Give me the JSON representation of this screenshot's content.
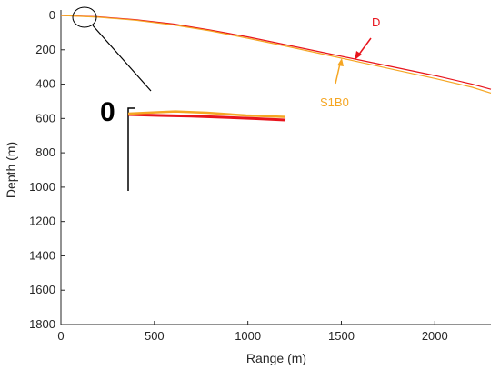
{
  "chart_data": {
    "type": "line",
    "xlabel": "Range (m)",
    "ylabel": "Depth (m)",
    "xlim": [
      0,
      2300
    ],
    "ylim": [
      0,
      1800
    ],
    "y_reversed": true,
    "x_ticks": [
      0,
      500,
      1000,
      1500,
      2000
    ],
    "y_ticks": [
      0,
      200,
      400,
      600,
      800,
      1000,
      1200,
      1400,
      1600,
      1800
    ],
    "grid": false,
    "series": [
      {
        "name": "D",
        "color": "#e8141c",
        "x": [
          0,
          200,
          400,
          600,
          800,
          1000,
          1200,
          1400,
          1600,
          1800,
          2000,
          2200,
          2300
        ],
        "y": [
          0,
          8,
          25,
          50,
          85,
          125,
          170,
          215,
          260,
          305,
          350,
          400,
          430
        ]
      },
      {
        "name": "S1B0",
        "color": "#f5a623",
        "x": [
          0,
          200,
          400,
          600,
          800,
          1000,
          1200,
          1400,
          1600,
          1800,
          2000,
          2200,
          2300
        ],
        "y": [
          0,
          10,
          28,
          55,
          90,
          133,
          178,
          225,
          272,
          320,
          367,
          418,
          452
        ]
      }
    ],
    "annotations": [
      {
        "text": "D",
        "color": "#e8141c",
        "x": 1690,
        "y": 30
      },
      {
        "text": "S1B0",
        "color": "#f5a623",
        "x": 1480,
        "y": 495
      }
    ],
    "inset": {
      "label": "0",
      "series": [
        {
          "name": "D",
          "color": "#e8141c",
          "x": [
            0,
            0.2,
            0.4,
            0.6,
            0.8,
            1.0
          ],
          "y": [
            0.05,
            0.1,
            0.14,
            0.2,
            0.27,
            0.35
          ]
        },
        {
          "name": "S1B0",
          "color": "#f5a623",
          "x": [
            0,
            0.2,
            0.3,
            0.5,
            0.75,
            1.0
          ],
          "y": [
            0.0,
            -0.08,
            -0.12,
            -0.05,
            0.1,
            0.18
          ]
        }
      ]
    }
  }
}
